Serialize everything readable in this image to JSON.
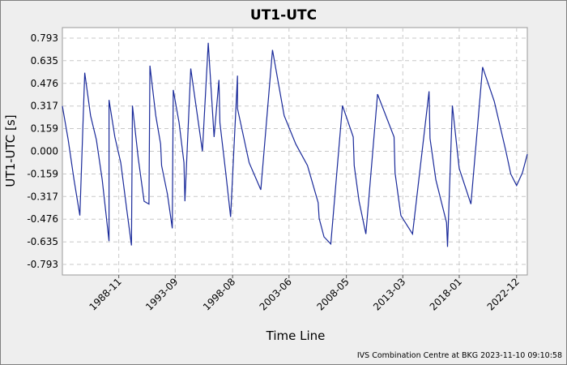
{
  "chart_data": {
    "type": "line",
    "title": "UT1-UTC",
    "xlabel": "Time Line",
    "ylabel": "UT1-UTC [s]",
    "credit": "IVS Combination Centre at BKG 2023-11-10 09:10:58",
    "x_ticks": [
      "1988-11",
      "1993-09",
      "1998-08",
      "2003-06",
      "2008-05",
      "2013-03",
      "2018-01",
      "2022-12"
    ],
    "y_ticks": [
      "0.793",
      "0.635",
      "0.476",
      "0.317",
      "0.159",
      "0.000",
      "-0.159",
      "-0.317",
      "-0.476",
      "-0.635",
      "-0.793"
    ],
    "xlim": [
      "1984-01",
      "2023-11"
    ],
    "ylim": [
      -0.793,
      0.793
    ],
    "grid": true,
    "line_color": "#1a2a9a",
    "series": [
      {
        "name": "",
        "x": [
          "1984-01",
          "1984-07",
          "1985-01",
          "1985-07",
          "1985-12",
          "1986-06",
          "1986-12",
          "1987-06",
          "1988-01",
          "1988-01",
          "1988-07",
          "1989-01",
          "1989-07",
          "1989-12",
          "1990-01",
          "1990-07",
          "1991-01",
          "1991-06",
          "1991-07",
          "1992-01",
          "1992-06",
          "1992-07",
          "1993-01",
          "1993-06",
          "1993-07",
          "1994-01",
          "1994-06",
          "1994-07",
          "1995-01",
          "1996-01",
          "1996-07",
          "1997-01",
          "1997-06",
          "1997-07",
          "1998-01",
          "1998-06",
          "1999-01",
          "1999-01",
          "2000-01",
          "2001-01",
          "2002-01",
          "2003-01",
          "2004-01",
          "2005-01",
          "2005-12",
          "2006-01",
          "2006-06",
          "2007-01",
          "2008-01",
          "2008-12",
          "2009-01",
          "2009-06",
          "2010-01",
          "2011-01",
          "2012-06",
          "2012-07",
          "2013-01",
          "2014-01",
          "2015-06",
          "2015-07",
          "2016-01",
          "2016-12",
          "2017-01",
          "2017-06",
          "2018-01",
          "2019-01",
          "2020-01",
          "2021-01",
          "2022-01",
          "2022-06",
          "2022-12",
          "2023-06",
          "2023-11"
        ],
        "y": [
          0.317,
          0.08,
          -0.2,
          -0.45,
          0.55,
          0.25,
          0.08,
          -0.2,
          -0.63,
          0.36,
          0.1,
          -0.08,
          -0.4,
          -0.66,
          0.32,
          -0.05,
          -0.35,
          -0.37,
          0.6,
          0.25,
          0.05,
          -0.1,
          -0.3,
          -0.54,
          0.43,
          0.2,
          -0.08,
          -0.35,
          0.58,
          0.0,
          0.76,
          0.1,
          0.5,
          0.2,
          -0.15,
          -0.46,
          0.53,
          0.3,
          -0.08,
          -0.27,
          0.71,
          0.25,
          0.05,
          -0.1,
          -0.36,
          -0.47,
          -0.6,
          -0.65,
          0.32,
          0.1,
          -0.1,
          -0.35,
          -0.58,
          0.4,
          0.1,
          -0.15,
          -0.45,
          -0.58,
          0.42,
          0.09,
          -0.2,
          -0.5,
          -0.67,
          0.32,
          -0.12,
          -0.37,
          0.59,
          0.35,
          0.0,
          -0.16,
          -0.24,
          -0.15,
          -0.02
        ]
      }
    ]
  }
}
